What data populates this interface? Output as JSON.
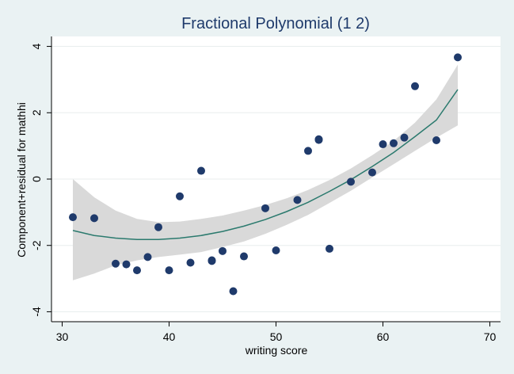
{
  "chart_data": {
    "type": "scatter",
    "title": "Fractional Polynomial (1 2)",
    "xlabel": "writing score",
    "ylabel": "Component+residual for mathhi",
    "xlim": [
      29,
      71
    ],
    "ylim": [
      -4.3,
      4.3
    ],
    "xticks": [
      30,
      40,
      50,
      60,
      70
    ],
    "yticks": [
      -4,
      -2,
      0,
      2,
      4
    ],
    "grid": "horizontal",
    "colors": {
      "background": "#eaf2f3",
      "plot_area": "#ffffff",
      "points": "#1f3a6b",
      "fit_line": "#2b7a6e",
      "ci_band": "#d9d9d9",
      "title": "#1e3a6b"
    },
    "points": [
      {
        "x": 31,
        "y": -1.15
      },
      {
        "x": 33,
        "y": -1.18
      },
      {
        "x": 35,
        "y": -2.55
      },
      {
        "x": 36,
        "y": -2.57
      },
      {
        "x": 37,
        "y": -2.75
      },
      {
        "x": 38,
        "y": -2.35
      },
      {
        "x": 39,
        "y": -1.45
      },
      {
        "x": 40,
        "y": -2.75
      },
      {
        "x": 41,
        "y": -0.52
      },
      {
        "x": 42,
        "y": -2.52
      },
      {
        "x": 43,
        "y": 0.25
      },
      {
        "x": 44,
        "y": -2.45
      },
      {
        "x": 44,
        "y": -2.47
      },
      {
        "x": 45,
        "y": -2.17
      },
      {
        "x": 46,
        "y": -3.38
      },
      {
        "x": 47,
        "y": -2.33
      },
      {
        "x": 49,
        "y": -0.88
      },
      {
        "x": 50,
        "y": -2.15
      },
      {
        "x": 52,
        "y": -0.63
      },
      {
        "x": 53,
        "y": 0.85
      },
      {
        "x": 54,
        "y": 1.2
      },
      {
        "x": 54,
        "y": 1.18
      },
      {
        "x": 55,
        "y": -2.1
      },
      {
        "x": 57,
        "y": -0.08
      },
      {
        "x": 59,
        "y": 0.2
      },
      {
        "x": 60,
        "y": 1.05
      },
      {
        "x": 61,
        "y": 1.08
      },
      {
        "x": 62,
        "y": 1.25
      },
      {
        "x": 63,
        "y": 2.8
      },
      {
        "x": 65,
        "y": 1.17
      },
      {
        "x": 67,
        "y": 3.67
      }
    ],
    "fit": {
      "x": [
        31,
        33,
        35,
        37,
        39,
        41,
        43,
        45,
        47,
        49,
        51,
        53,
        55,
        57,
        59,
        61,
        63,
        65,
        67
      ],
      "y": [
        -1.55,
        -1.7,
        -1.78,
        -1.82,
        -1.82,
        -1.78,
        -1.7,
        -1.58,
        -1.42,
        -1.22,
        -0.98,
        -0.7,
        -0.37,
        -0.02,
        0.38,
        0.8,
        1.28,
        1.78,
        2.7
      ],
      "lo": [
        -3.05,
        -2.85,
        -2.6,
        -2.45,
        -2.35,
        -2.28,
        -2.2,
        -2.05,
        -1.88,
        -1.65,
        -1.38,
        -1.08,
        -0.72,
        -0.35,
        0.05,
        0.45,
        0.85,
        1.25,
        1.62
      ],
      "hi": [
        0.0,
        -0.55,
        -0.95,
        -1.2,
        -1.3,
        -1.28,
        -1.2,
        -1.1,
        -0.95,
        -0.78,
        -0.58,
        -0.33,
        -0.03,
        0.32,
        0.72,
        1.15,
        1.7,
        2.4,
        3.45
      ]
    }
  }
}
